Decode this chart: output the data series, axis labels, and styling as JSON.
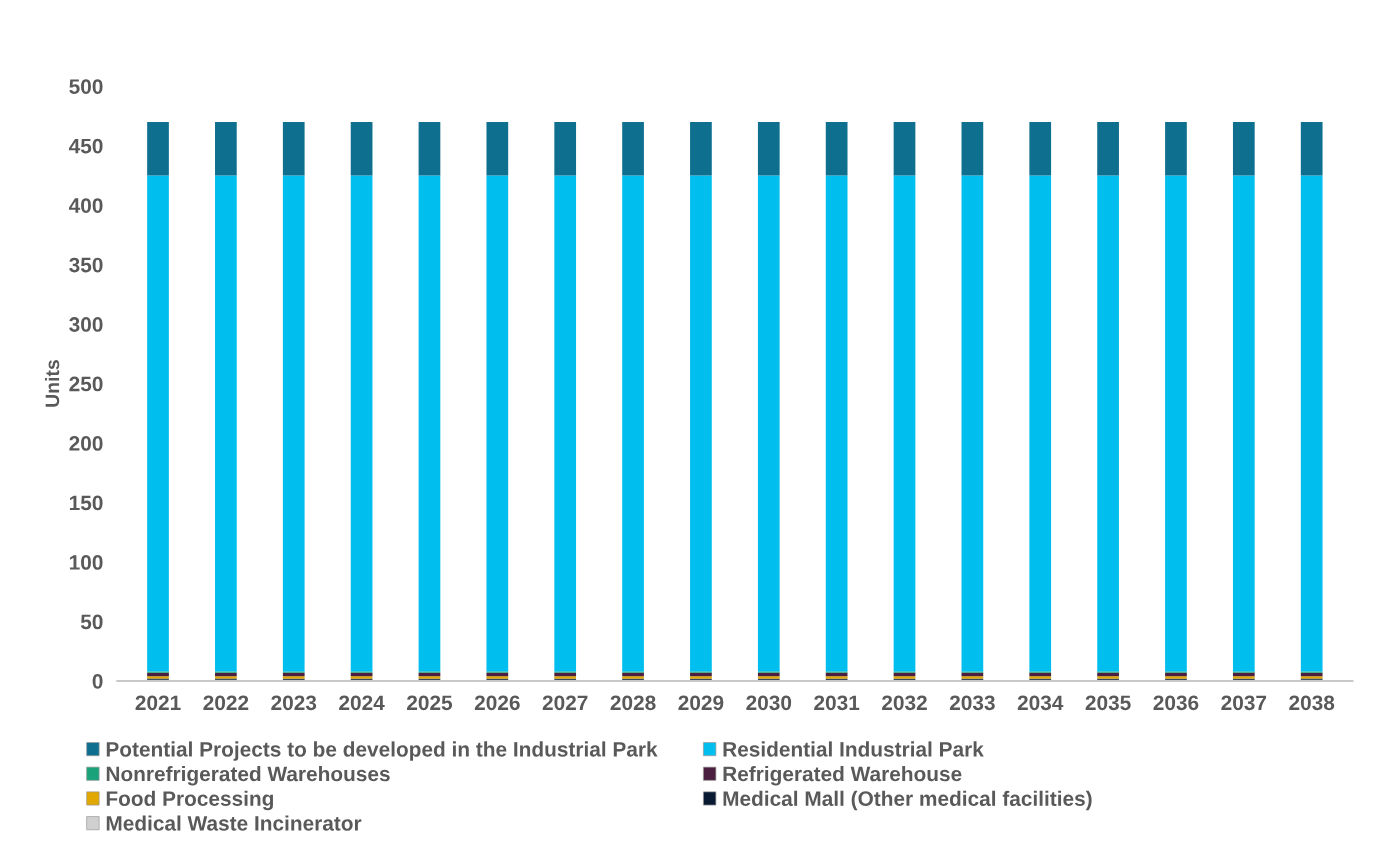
{
  "chart_data": {
    "type": "bar",
    "stacked": true,
    "ylabel": "Units",
    "categories": [
      "2021",
      "2022",
      "2023",
      "2024",
      "2025",
      "2026",
      "2027",
      "2028",
      "2029",
      "2030",
      "2031",
      "2032",
      "2033",
      "2034",
      "2035",
      "2036",
      "2037",
      "2038"
    ],
    "series": [
      {
        "name": "Medical Waste Incinerator",
        "color": "#d0d0d0",
        "values": [
          1,
          1,
          1,
          1,
          1,
          1,
          1,
          1,
          1,
          1,
          1,
          1,
          1,
          1,
          1,
          1,
          1,
          1
        ]
      },
      {
        "name": "Medical Mall (Other medical facilities)",
        "color": "#0a1a33",
        "values": [
          1,
          1,
          1,
          1,
          1,
          1,
          1,
          1,
          1,
          1,
          1,
          1,
          1,
          1,
          1,
          1,
          1,
          1
        ]
      },
      {
        "name": "Food Processing",
        "color": "#e0a800",
        "values": [
          2,
          2,
          2,
          2,
          2,
          2,
          2,
          2,
          2,
          2,
          2,
          2,
          2,
          2,
          2,
          2,
          2,
          2
        ]
      },
      {
        "name": "Refrigerated Warehouse",
        "color": "#4a1f3f",
        "values": [
          3,
          3,
          3,
          3,
          3,
          3,
          3,
          3,
          3,
          3,
          3,
          3,
          3,
          3,
          3,
          3,
          3,
          3
        ]
      },
      {
        "name": "Nonrefrigerated Warehouses",
        "color": "#1aa37a",
        "values": [
          1,
          1,
          1,
          1,
          1,
          1,
          1,
          1,
          1,
          1,
          1,
          1,
          1,
          1,
          1,
          1,
          1,
          1
        ]
      },
      {
        "name": "Residential Industrial Park",
        "color": "#00bfef",
        "values": [
          417,
          417,
          417,
          417,
          417,
          417,
          417,
          417,
          417,
          417,
          417,
          417,
          417,
          417,
          417,
          417,
          417,
          417
        ]
      },
      {
        "name": "Potential Projects to be developed in the Industrial Park",
        "color": "#0e6f8f",
        "values": [
          45,
          45,
          45,
          45,
          45,
          45,
          45,
          45,
          45,
          45,
          45,
          45,
          45,
          45,
          45,
          45,
          45,
          45
        ]
      }
    ],
    "ylim": [
      0,
      500
    ],
    "yticks": [
      0,
      50,
      100,
      150,
      200,
      250,
      300,
      350,
      400,
      450,
      500
    ],
    "grid": false,
    "legend": "bottom"
  }
}
